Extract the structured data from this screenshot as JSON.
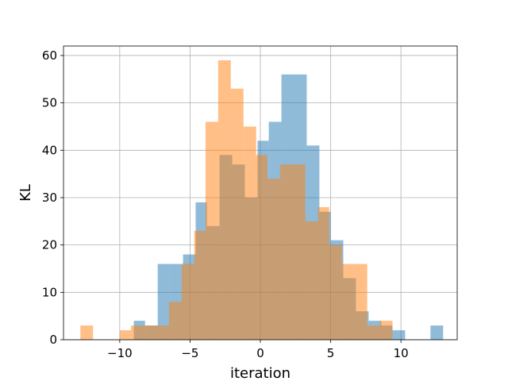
{
  "chart_data": {
    "type": "bar",
    "title": "",
    "xlabel": "iteration",
    "ylabel": "KL",
    "xlim": [
      -14,
      14
    ],
    "ylim": [
      0,
      62
    ],
    "xticks": [
      -10,
      -5,
      0,
      5,
      10
    ],
    "yticks": [
      0,
      10,
      20,
      30,
      40,
      50,
      60
    ],
    "grid": true,
    "colors": {
      "blue": "#1f77b4",
      "orange": "#ff7f0e"
    },
    "series": [
      {
        "color": "blue",
        "opacity": 0.5,
        "bins": [
          {
            "x0": -9.0,
            "x1": -8.2,
            "y": 4
          },
          {
            "x0": -8.2,
            "x1": -7.3,
            "y": 3
          },
          {
            "x0": -7.3,
            "x1": -6.4,
            "y": 16
          },
          {
            "x0": -6.4,
            "x1": -5.5,
            "y": 16
          },
          {
            "x0": -5.5,
            "x1": -4.6,
            "y": 18
          },
          {
            "x0": -4.6,
            "x1": -3.8,
            "y": 29
          },
          {
            "x0": -3.8,
            "x1": -2.9,
            "y": 24
          },
          {
            "x0": -2.9,
            "x1": -2.0,
            "y": 39
          },
          {
            "x0": -2.0,
            "x1": -1.1,
            "y": 37
          },
          {
            "x0": -1.1,
            "x1": -0.2,
            "y": 30
          },
          {
            "x0": -0.2,
            "x1": 0.6,
            "y": 42
          },
          {
            "x0": 0.6,
            "x1": 1.5,
            "y": 46
          },
          {
            "x0": 1.5,
            "x1": 2.4,
            "y": 56
          },
          {
            "x0": 2.4,
            "x1": 3.3,
            "y": 56
          },
          {
            "x0": 3.3,
            "x1": 4.2,
            "y": 41
          },
          {
            "x0": 4.2,
            "x1": 5.0,
            "y": 27
          },
          {
            "x0": 5.0,
            "x1": 5.9,
            "y": 21
          },
          {
            "x0": 5.9,
            "x1": 6.8,
            "y": 13
          },
          {
            "x0": 6.8,
            "x1": 7.7,
            "y": 6
          },
          {
            "x0": 7.7,
            "x1": 8.6,
            "y": 4
          },
          {
            "x0": 8.6,
            "x1": 9.4,
            "y": 3
          },
          {
            "x0": 9.4,
            "x1": 10.3,
            "y": 2
          },
          {
            "x0": 12.1,
            "x1": 13.0,
            "y": 3
          }
        ]
      },
      {
        "color": "orange",
        "opacity": 0.5,
        "bins": [
          {
            "x0": -12.8,
            "x1": -11.9,
            "y": 3
          },
          {
            "x0": -10.0,
            "x1": -9.2,
            "y": 2
          },
          {
            "x0": -9.2,
            "x1": -8.3,
            "y": 3
          },
          {
            "x0": -8.3,
            "x1": -7.4,
            "y": 3
          },
          {
            "x0": -7.4,
            "x1": -6.5,
            "y": 3
          },
          {
            "x0": -6.5,
            "x1": -5.6,
            "y": 8
          },
          {
            "x0": -5.6,
            "x1": -4.7,
            "y": 16
          },
          {
            "x0": -4.7,
            "x1": -3.9,
            "y": 23
          },
          {
            "x0": -3.9,
            "x1": -3.0,
            "y": 46
          },
          {
            "x0": -3.0,
            "x1": -2.1,
            "y": 59
          },
          {
            "x0": -2.1,
            "x1": -1.2,
            "y": 53
          },
          {
            "x0": -1.2,
            "x1": -0.3,
            "y": 45
          },
          {
            "x0": -0.3,
            "x1": 0.5,
            "y": 39
          },
          {
            "x0": 0.5,
            "x1": 1.4,
            "y": 34
          },
          {
            "x0": 1.4,
            "x1": 2.3,
            "y": 37
          },
          {
            "x0": 2.3,
            "x1": 3.2,
            "y": 37
          },
          {
            "x0": 3.2,
            "x1": 4.1,
            "y": 25
          },
          {
            "x0": 4.1,
            "x1": 4.9,
            "y": 28
          },
          {
            "x0": 4.9,
            "x1": 5.8,
            "y": 20
          },
          {
            "x0": 5.8,
            "x1": 6.7,
            "y": 16
          },
          {
            "x0": 6.7,
            "x1": 7.6,
            "y": 16
          },
          {
            "x0": 7.6,
            "x1": 8.5,
            "y": 3
          },
          {
            "x0": 8.5,
            "x1": 9.4,
            "y": 4
          }
        ]
      }
    ]
  }
}
